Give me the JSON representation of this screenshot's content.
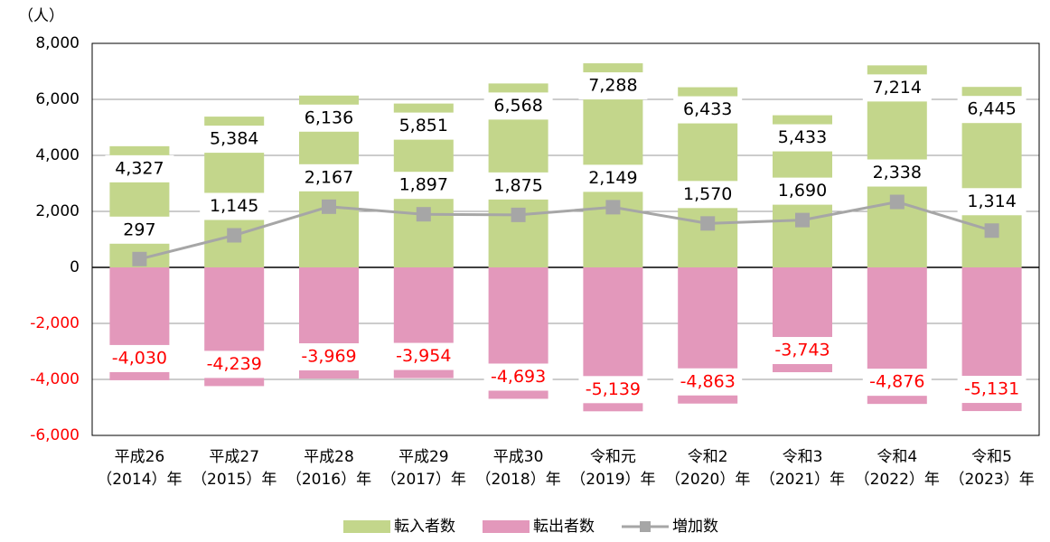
{
  "chart_data": {
    "type": "bar",
    "unit_label": "（人）",
    "categories": [
      [
        "平成26",
        "（2014）年"
      ],
      [
        "平成27",
        "（2015）年"
      ],
      [
        "平成28",
        "（2016）年"
      ],
      [
        "平成29",
        "（2017）年"
      ],
      [
        "平成30",
        "（2018）年"
      ],
      [
        "令和元",
        "（2019）年"
      ],
      [
        "令和2",
        "（2020）年"
      ],
      [
        "令和3",
        "（2021）年"
      ],
      [
        "令和4",
        "（2022）年"
      ],
      [
        "令和5",
        "（2023）年"
      ]
    ],
    "series": [
      {
        "name": "転入者数",
        "type": "bar",
        "color": "#c3d68b",
        "values": [
          4327,
          5384,
          6136,
          5851,
          6568,
          7288,
          6433,
          5433,
          7214,
          6445
        ],
        "value_labels": [
          "4,327",
          "5,384",
          "6,136",
          "5,851",
          "6,568",
          "7,288",
          "6,433",
          "5,433",
          "7,214",
          "6,445"
        ]
      },
      {
        "name": "転出者数",
        "type": "bar",
        "color": "#e398bb",
        "label_color": "#ff0000",
        "values": [
          -4030,
          -4239,
          -3969,
          -3954,
          -4693,
          -5139,
          -4863,
          -3743,
          -4876,
          -5131
        ],
        "value_labels": [
          "-4,030",
          "-4,239",
          "-3,969",
          "-3,954",
          "-4,693",
          "-5,139",
          "-4,863",
          "-3,743",
          "-4,876",
          "-5,131"
        ]
      },
      {
        "name": "増加数",
        "type": "line",
        "color": "#a6a6a6",
        "values": [
          297,
          1145,
          2167,
          1897,
          1875,
          2149,
          1570,
          1690,
          2338,
          1314
        ],
        "value_labels": [
          "297",
          "1,145",
          "2,167",
          "1,897",
          "1,875",
          "2,149",
          "1,570",
          "1,690",
          "2,338",
          "1,314"
        ]
      }
    ],
    "ylim": [
      -6000,
      8000
    ],
    "yticks": [
      {
        "value": -6000,
        "label": "-6,000"
      },
      {
        "value": -4000,
        "label": "-4,000"
      },
      {
        "value": -2000,
        "label": "-2,000"
      },
      0,
      {
        "value": 2000,
        "label": "2,000"
      },
      {
        "value": 4000,
        "label": "4,000"
      },
      {
        "value": 6000,
        "label": "6,000"
      },
      {
        "value": 8000,
        "label": "8,000"
      }
    ],
    "negative_tick_color": "#ff0000",
    "grid": true,
    "legend": "bottom"
  }
}
